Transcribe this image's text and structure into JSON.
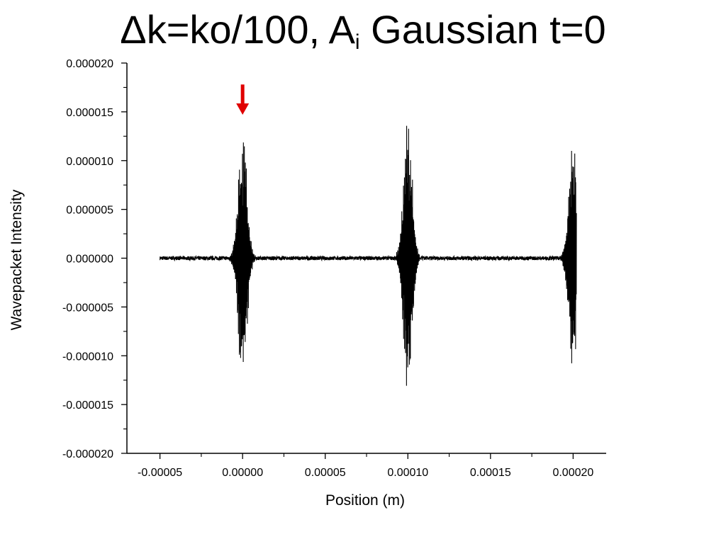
{
  "title": {
    "main": "Δk=ko/100, A",
    "sub": "i",
    "rest": " Gaussian t=0"
  },
  "chart_data": {
    "type": "line",
    "xlabel": "Position (m)",
    "ylabel": "Wavepacket Intensity",
    "xlim": [
      -7e-05,
      0.00022
    ],
    "ylim": [
      -2e-05,
      2e-05
    ],
    "x_ticks": [
      -5e-05,
      0.0,
      5e-05,
      0.0001,
      0.00015,
      0.0002
    ],
    "x_tick_labels": [
      "-0.00005",
      "0.00000",
      "0.00005",
      "0.00010",
      "0.00015",
      "0.00020"
    ],
    "y_ticks": [
      2e-05,
      1.5e-05,
      1e-05,
      5e-06,
      0.0,
      -5e-06,
      -1e-05,
      -1.5e-05,
      -2e-05
    ],
    "y_tick_labels": [
      "0.000020",
      "0.000015",
      "0.000010",
      "0.000005",
      "0.000000",
      "-0.000005",
      "-0.000010",
      "-0.000015",
      "-0.000020"
    ],
    "x_range": [
      -5e-05,
      0.000202
    ],
    "packets": [
      {
        "center": 0.0,
        "peak_amplitude": 1.4e-05
      },
      {
        "center": 0.0001,
        "peak_amplitude": 1.5e-05
      },
      {
        "center": 0.0002,
        "peak_amplitude": 1.3e-05
      }
    ],
    "line_color": "#000000",
    "grid": false,
    "annotations": [
      {
        "type": "arrow",
        "x": 0.0,
        "y_top": 1.78e-05,
        "y_tip": 1.47e-05,
        "color": "#e00000"
      }
    ]
  }
}
